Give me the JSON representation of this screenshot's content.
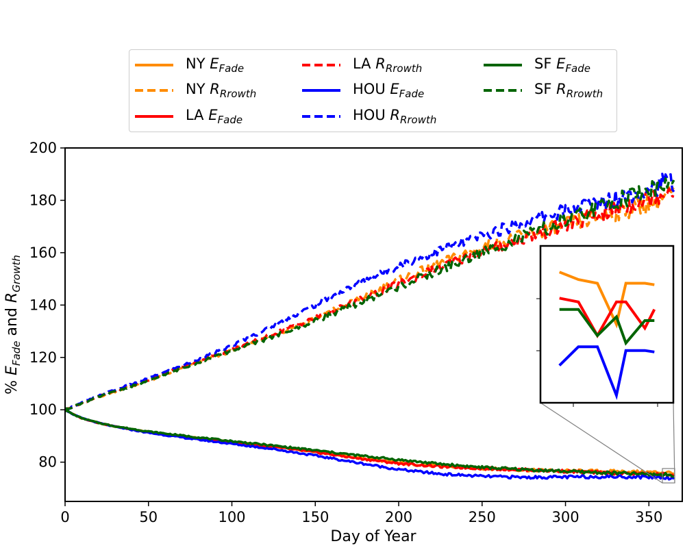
{
  "chart_data": {
    "type": "line",
    "xlabel": "Day of Year",
    "ylabel": "% E_Fade and R_Growth",
    "xlim": [
      0,
      370
    ],
    "ylim": [
      65,
      200
    ],
    "x_ticks": [
      0,
      50,
      100,
      150,
      200,
      250,
      300,
      350
    ],
    "y_ticks": [
      80,
      100,
      120,
      140,
      160,
      180,
      200
    ],
    "legend_position": "top-center, outside plot, 3 columns",
    "grid": false,
    "series": [
      {
        "name": "NY E_Fade",
        "city": "NY",
        "metric": "E",
        "subscript": "Fade",
        "color": "#ff8c00",
        "style": "solid",
        "x": [
          0,
          5,
          10,
          20,
          30,
          50,
          75,
          100,
          125,
          150,
          175,
          200,
          225,
          250,
          275,
          300,
          325,
          350,
          365
        ],
        "y": [
          100,
          98.2,
          96.8,
          95.0,
          93.6,
          91.5,
          89.5,
          87.7,
          86.0,
          84.0,
          81.8,
          79.7,
          78.5,
          77.6,
          77.0,
          76.7,
          76.5,
          76.2,
          76.0
        ]
      },
      {
        "name": "NY R_Rrowth",
        "city": "NY",
        "metric": "R",
        "subscript": "Rrowth",
        "color": "#ff8c00",
        "style": "dashed",
        "x": [
          0,
          10,
          25,
          50,
          75,
          100,
          125,
          150,
          175,
          200,
          225,
          250,
          275,
          300,
          325,
          350,
          365
        ],
        "y": [
          100,
          102.5,
          106,
          111,
          117,
          122.5,
          128.5,
          135,
          142,
          149.5,
          156,
          162,
          166.5,
          170.5,
          174.5,
          179,
          182.5
        ]
      },
      {
        "name": "LA E_Fade",
        "city": "LA",
        "metric": "E",
        "subscript": "Fade",
        "color": "#ff0000",
        "style": "solid",
        "x": [
          0,
          5,
          10,
          20,
          30,
          50,
          75,
          100,
          125,
          150,
          175,
          200,
          225,
          250,
          275,
          300,
          325,
          350,
          365
        ],
        "y": [
          100,
          98.2,
          96.8,
          95.0,
          93.6,
          91.4,
          89.3,
          87.5,
          85.8,
          83.8,
          81.5,
          79.5,
          78.3,
          77.6,
          77.1,
          76.5,
          75.9,
          75.4,
          75.2
        ]
      },
      {
        "name": "LA R_Rrowth",
        "city": "LA",
        "metric": "R",
        "subscript": "Rrowth",
        "color": "#ff0000",
        "style": "dashed",
        "x": [
          0,
          10,
          25,
          50,
          75,
          100,
          125,
          150,
          175,
          200,
          225,
          250,
          275,
          300,
          325,
          350,
          365
        ],
        "y": [
          100,
          102.6,
          106.2,
          111.5,
          117.5,
          123,
          129,
          135,
          141.5,
          148,
          154.5,
          160.5,
          165.5,
          170.5,
          175.5,
          181,
          185
        ]
      },
      {
        "name": "HOU E_Fade",
        "city": "HOU",
        "metric": "E",
        "subscript": "Fade",
        "color": "#0000ff",
        "style": "solid",
        "x": [
          0,
          5,
          10,
          20,
          30,
          50,
          75,
          100,
          125,
          150,
          175,
          200,
          225,
          250,
          275,
          300,
          325,
          350,
          365
        ],
        "y": [
          100,
          98.2,
          96.8,
          95.0,
          93.5,
          91.2,
          89.0,
          87.0,
          85.0,
          82.5,
          79.8,
          77.2,
          75.5,
          74.6,
          74.2,
          74.3,
          74.5,
          74.3,
          74.0
        ]
      },
      {
        "name": "HOU R_Rrowth",
        "city": "HOU",
        "metric": "R",
        "subscript": "Rrowth",
        "color": "#0000ff",
        "style": "dashed",
        "x": [
          0,
          10,
          25,
          50,
          75,
          100,
          125,
          150,
          175,
          200,
          225,
          250,
          275,
          300,
          325,
          350,
          365
        ],
        "y": [
          100,
          102.7,
          106.5,
          112,
          118,
          124.5,
          132,
          140,
          148,
          155,
          161,
          166.5,
          171.5,
          176,
          180,
          184.5,
          187.5
        ]
      },
      {
        "name": "SF E_Fade",
        "city": "SF",
        "metric": "E",
        "subscript": "Fade",
        "color": "#006400",
        "style": "solid",
        "x": [
          0,
          5,
          10,
          20,
          30,
          50,
          75,
          100,
          125,
          150,
          175,
          200,
          225,
          250,
          275,
          300,
          325,
          350,
          365
        ],
        "y": [
          100,
          98.2,
          96.8,
          95.0,
          93.7,
          91.7,
          89.8,
          88.0,
          86.3,
          84.5,
          82.6,
          80.9,
          79.3,
          78.0,
          77.2,
          76.5,
          75.9,
          75.4,
          75.1
        ]
      },
      {
        "name": "SF R_Rrowth",
        "city": "SF",
        "metric": "R",
        "subscript": "Rrowth",
        "color": "#006400",
        "style": "dashed",
        "x": [
          0,
          10,
          25,
          50,
          75,
          100,
          125,
          150,
          175,
          200,
          225,
          250,
          275,
          300,
          325,
          350,
          365
        ],
        "y": [
          100,
          102.5,
          106,
          111,
          117,
          122.5,
          128,
          134,
          140.5,
          147,
          153.5,
          160,
          166,
          172,
          178.5,
          184,
          186.5
        ]
      }
    ],
    "inset": {
      "type": "line",
      "x": [
        355,
        357,
        359,
        361,
        362,
        364,
        365
      ],
      "series": [
        {
          "name": "NY E_Fade",
          "color": "#ff8c00",
          "y": [
            75.95,
            75.85,
            75.8,
            75.25,
            75.8,
            75.8,
            75.78
          ]
        },
        {
          "name": "LA E_Fade",
          "color": "#ff0000",
          "y": [
            75.6,
            75.55,
            75.1,
            75.55,
            75.55,
            75.2,
            75.45
          ]
        },
        {
          "name": "SF E_Fade",
          "color": "#006400",
          "y": [
            75.45,
            75.45,
            75.1,
            75.35,
            75.0,
            75.3,
            75.3
          ]
        },
        {
          "name": "HOU E_Fade",
          "color": "#0000ff",
          "y": [
            74.7,
            74.95,
            74.95,
            74.3,
            74.9,
            74.9,
            74.88
          ]
        }
      ]
    }
  },
  "legend": {
    "items": [
      {
        "city": "NY",
        "metric": "E",
        "sub": "Fade",
        "color": "#ff8c00",
        "style": "solid"
      },
      {
        "city": "NY",
        "metric": "R",
        "sub": "Rrowth",
        "color": "#ff8c00",
        "style": "dashed"
      },
      {
        "city": "LA",
        "metric": "E",
        "sub": "Fade",
        "color": "#ff0000",
        "style": "solid"
      },
      {
        "city": "LA",
        "metric": "R",
        "sub": "Rrowth",
        "color": "#ff0000",
        "style": "dashed"
      },
      {
        "city": "HOU",
        "metric": "E",
        "sub": "Fade",
        "color": "#0000ff",
        "style": "solid"
      },
      {
        "city": "HOU",
        "metric": "R",
        "sub": "Rrowth",
        "color": "#0000ff",
        "style": "dashed"
      },
      {
        "city": "SF",
        "metric": "E",
        "sub": "Fade",
        "color": "#006400",
        "style": "solid"
      },
      {
        "city": "SF",
        "metric": "R",
        "sub": "Rrowth",
        "color": "#006400",
        "style": "dashed"
      }
    ]
  },
  "axes": {
    "xlabel": "Day of Year",
    "ylabel_prefix": "% ",
    "ylabel_e": "E",
    "ylabel_e_sub": "Fade",
    "ylabel_and": " and ",
    "ylabel_r": "R",
    "ylabel_r_sub": "Growth"
  }
}
